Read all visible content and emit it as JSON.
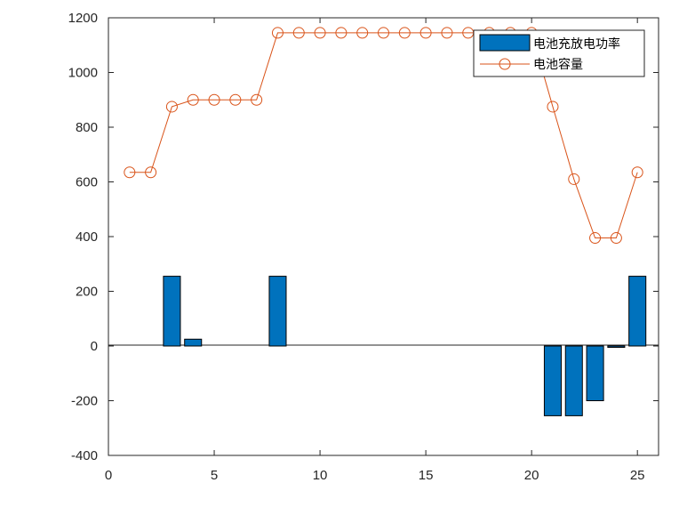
{
  "chart_data": {
    "type": "bar",
    "title": "",
    "xlabel": "",
    "ylabel": "",
    "xlim": [
      0,
      26
    ],
    "ylim": [
      -400,
      1200
    ],
    "xticks": [
      0,
      5,
      10,
      15,
      20,
      25
    ],
    "yticks": [
      -400,
      -200,
      0,
      200,
      400,
      600,
      800,
      1000,
      1200
    ],
    "grid": false,
    "legend_position": "top-right",
    "x": [
      1,
      2,
      3,
      4,
      5,
      6,
      7,
      8,
      9,
      10,
      11,
      12,
      13,
      14,
      15,
      16,
      17,
      18,
      19,
      20,
      21,
      22,
      23,
      24,
      25
    ],
    "series": [
      {
        "name": "电池充放电功率",
        "type": "bar",
        "color": "#0072BD",
        "values": [
          0,
          0,
          255,
          25,
          0,
          0,
          0,
          255,
          0,
          0,
          0,
          0,
          0,
          0,
          0,
          0,
          0,
          0,
          0,
          0,
          -255,
          -255,
          -200,
          -5,
          255
        ]
      },
      {
        "name": "电池容量",
        "type": "line",
        "marker": "circle",
        "color": "#D95319",
        "values": [
          635,
          635,
          875,
          900,
          900,
          900,
          900,
          1145,
          1145,
          1145,
          1145,
          1145,
          1145,
          1145,
          1145,
          1145,
          1145,
          1145,
          1145,
          1145,
          875,
          610,
          395,
          395,
          635
        ]
      }
    ]
  }
}
